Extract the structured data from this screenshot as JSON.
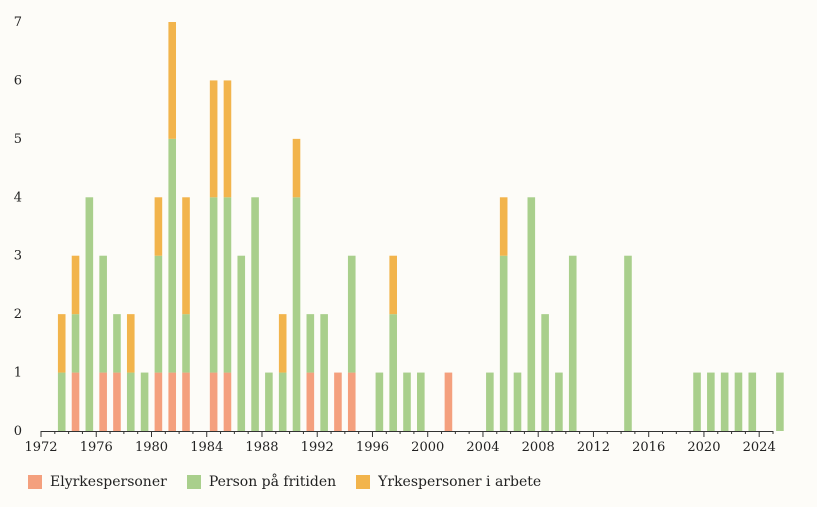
{
  "chart_data": {
    "type": "bar",
    "stacked": true,
    "xlim": [
      1972,
      2025
    ],
    "ylim": [
      0,
      7
    ],
    "grid": false,
    "legend_position": "bottom-left",
    "x_ticks": [
      1972,
      1976,
      1980,
      1984,
      1988,
      1992,
      1996,
      2000,
      2004,
      2008,
      2012,
      2016,
      2020,
      2024
    ],
    "y_ticks": [
      0,
      1,
      2,
      3,
      4,
      5,
      6,
      7
    ],
    "years": [
      1973,
      1974,
      1975,
      1976,
      1977,
      1978,
      1979,
      1980,
      1981,
      1982,
      1984,
      1985,
      1986,
      1987,
      1988,
      1989,
      1990,
      1991,
      1992,
      1993,
      1994,
      1996,
      1997,
      1998,
      1999,
      2001,
      2004,
      2005,
      2006,
      2007,
      2008,
      2009,
      2010,
      2014,
      2019,
      2020,
      2021,
      2022,
      2023,
      2025
    ],
    "series": [
      {
        "name": "Elyrkespersoner",
        "color": "#f4a07e",
        "values": [
          0,
          1,
          0,
          1,
          1,
          0,
          0,
          1,
          1,
          1,
          1,
          1,
          0,
          0,
          0,
          0,
          0,
          1,
          0,
          1,
          1,
          0,
          0,
          0,
          0,
          1,
          0,
          0,
          0,
          0,
          0,
          0,
          0,
          0,
          0,
          0,
          0,
          0,
          0,
          0
        ]
      },
      {
        "name": "Person på fritiden",
        "color": "#a9cf8c",
        "values": [
          1,
          1,
          4,
          2,
          1,
          1,
          1,
          2,
          4,
          1,
          3,
          3,
          3,
          4,
          1,
          1,
          4,
          1,
          2,
          0,
          2,
          1,
          2,
          1,
          1,
          0,
          1,
          3,
          1,
          4,
          2,
          1,
          3,
          3,
          1,
          1,
          1,
          1,
          1,
          1
        ]
      },
      {
        "name": "Yrkespersoner i arbete",
        "color": "#f2b44c",
        "values": [
          1,
          1,
          0,
          0,
          0,
          1,
          0,
          1,
          2,
          2,
          2,
          2,
          0,
          0,
          0,
          1,
          1,
          0,
          0,
          0,
          0,
          0,
          1,
          0,
          0,
          0,
          0,
          1,
          0,
          0,
          0,
          0,
          0,
          0,
          0,
          0,
          0,
          0,
          0,
          0
        ]
      }
    ]
  }
}
